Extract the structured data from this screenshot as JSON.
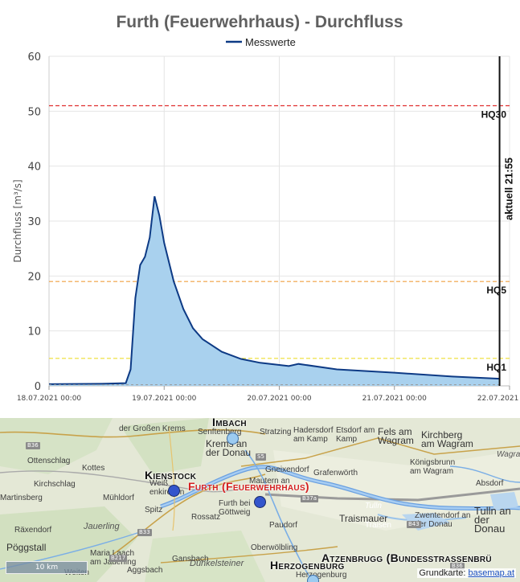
{
  "chart_data": {
    "type": "area",
    "title": "Furth (Feuerwehrhaus) - Durchfluss",
    "ylabel": "Durchfluss [m³/s]",
    "xlabel": "",
    "ylim": [
      0,
      60
    ],
    "yticks": [
      0,
      10,
      20,
      30,
      40,
      50,
      60
    ],
    "xlim": [
      "2021-07-18 00:00",
      "2021-07-22 00:00"
    ],
    "xticks": [
      "18.07.2021 00:00",
      "19.07.2021 00:00",
      "20.07.2021 00:00",
      "21.07.2021 00:00",
      "22.07.2021 00:00"
    ],
    "grid": true,
    "legend": "top-center",
    "series": [
      {
        "name": "Messwerte",
        "color": "#0d3a85",
        "fill": "#a9d1ee",
        "x": [
          "2021-07-18 00:00",
          "2021-07-18 12:00",
          "2021-07-18 16:00",
          "2021-07-18 17:00",
          "2021-07-18 18:00",
          "2021-07-18 19:00",
          "2021-07-18 20:00",
          "2021-07-18 21:00",
          "2021-07-18 22:00",
          "2021-07-18 23:00",
          "2021-07-19 00:00",
          "2021-07-19 02:00",
          "2021-07-19 04:00",
          "2021-07-19 06:00",
          "2021-07-19 08:00",
          "2021-07-19 12:00",
          "2021-07-19 16:00",
          "2021-07-19 20:00",
          "2021-07-20 00:00",
          "2021-07-20 02:00",
          "2021-07-20 04:00",
          "2021-07-20 12:00",
          "2021-07-21 00:00",
          "2021-07-21 12:00",
          "2021-07-21 21:55"
        ],
        "values": [
          0.3,
          0.4,
          0.5,
          3.0,
          16.0,
          22.0,
          23.5,
          27.0,
          34.5,
          31.0,
          26.0,
          19.0,
          14.0,
          10.5,
          8.5,
          6.2,
          4.9,
          4.2,
          3.8,
          3.6,
          4.0,
          3.0,
          2.4,
          1.7,
          1.3
        ]
      }
    ],
    "thresholds": [
      {
        "name": "HQ30",
        "value": 51,
        "color": "#e03030"
      },
      {
        "name": "HQ5",
        "value": 19,
        "color": "#f0a040"
      },
      {
        "name": "HQ1",
        "value": 5,
        "color": "#eedd30"
      }
    ],
    "current_marker": {
      "x": "2021-07-21 21:55",
      "label": "aktuell 21:55"
    },
    "lowline": {
      "value": 0.2,
      "color": "#999999"
    }
  },
  "map": {
    "stations": [
      {
        "name": "Imbach",
        "active": false
      },
      {
        "name": "Kienstock",
        "active": false
      },
      {
        "name": "Furth (Feuerwehrhaus)",
        "active": true
      },
      {
        "name": "Herzogenburg",
        "active": false
      },
      {
        "name": "Atzenbrugg (Bundesstrassenbrü",
        "active": false
      }
    ],
    "towns": [
      "Senftenberg",
      "Stratzing",
      "Hadersdorf am Kamp",
      "Etsdorf am Kamp",
      "Fels am Wagram",
      "Kirchberg am Wagram",
      "Krems an der Donau",
      "Ottenschlag",
      "Kottes",
      "Kirchschlag",
      "Weiß enkirchen",
      "Mautern an",
      "Gneixendorf",
      "Grafenwörth",
      "Königsbrunn am Wagram",
      "Absdorf",
      "Wagram",
      "Mühldorf",
      "Spitz",
      "Furth bei Göttweig",
      "Paudorf",
      "Traismauer",
      "Zwentendorf an der Donau",
      "Tulln an der Donau",
      "Tulln",
      "Rossatz",
      "Jauerling",
      "Räxendorf",
      "Pöggstall",
      "Maria Laach am Jauerling",
      "Aggsbach",
      "Gansbach",
      "Oberwölbling",
      "Dunkelsteiner",
      "Herzogenburg",
      "Martinsberg",
      "Traisen",
      "Weiten",
      "der Großen Krems"
    ],
    "roads": [
      "B36",
      "S5",
      "B37a",
      "B43",
      "B33",
      "B217",
      "B36"
    ],
    "scale_label": "10 km",
    "attribution_label": "Grundkarte:",
    "attribution_link": "basemap.at"
  }
}
